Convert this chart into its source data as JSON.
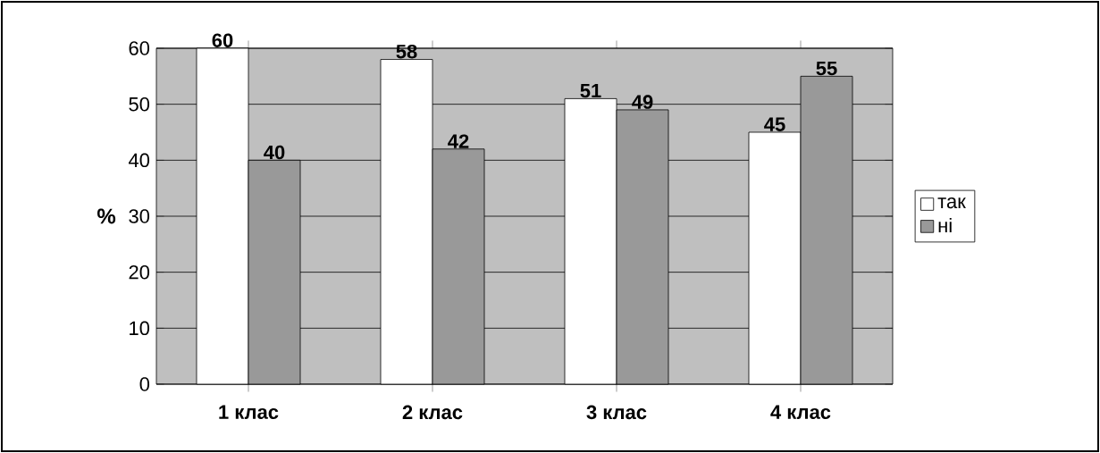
{
  "chart_data": {
    "type": "bar",
    "ylabel": "%",
    "categories": [
      "1 клас",
      "2 клас",
      "3 клас",
      "4 клас"
    ],
    "series": [
      {
        "name": "так",
        "color": "#ffffff",
        "values": [
          60,
          58,
          51,
          45
        ]
      },
      {
        "name": "ні",
        "color": "#999999",
        "values": [
          40,
          42,
          49,
          55
        ]
      }
    ],
    "ylim": [
      0,
      60
    ],
    "yticks": [
      0,
      10,
      20,
      30,
      40,
      50,
      60
    ],
    "grid": "y",
    "legend": "right",
    "data_labels": true
  }
}
